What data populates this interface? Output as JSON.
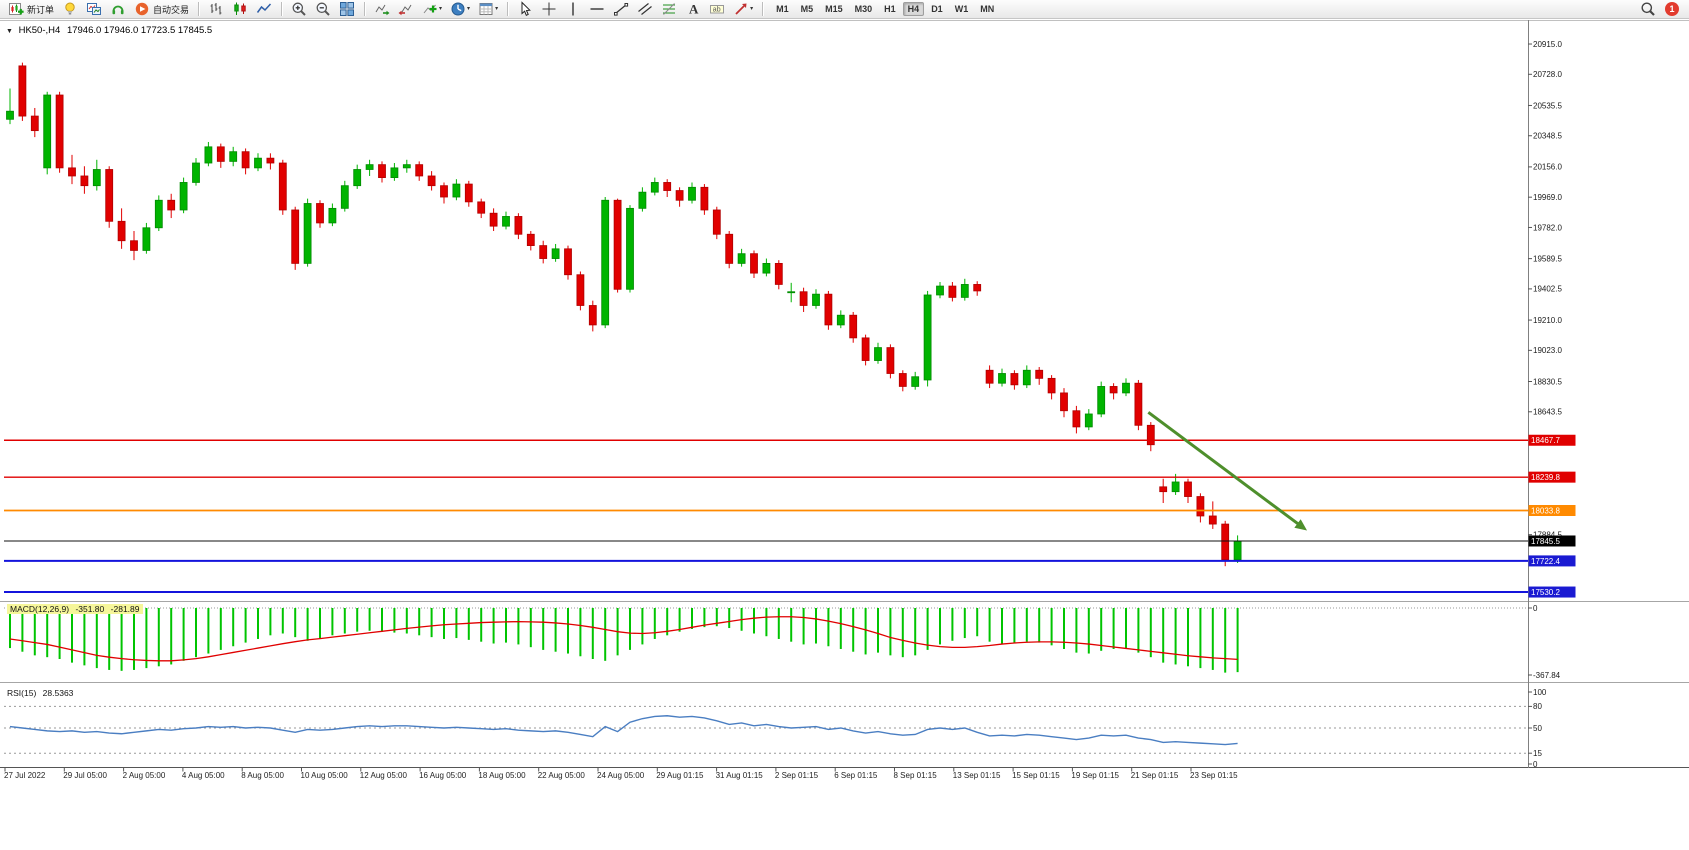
{
  "toolbar": {
    "buttons": [
      {
        "id": "new-order",
        "icon": "new-order-icon",
        "label": "新订单"
      },
      {
        "id": "quotes",
        "icon": "lightbulb-icon"
      },
      {
        "id": "chart-windows",
        "icon": "chart-window-icon"
      },
      {
        "id": "market-watch",
        "icon": "headset-icon"
      },
      {
        "id": "auto-trading",
        "icon": "autotrading-icon",
        "label": "自动交易"
      },
      {
        "sep": true
      },
      {
        "id": "bar-chart",
        "icon": "bar-chart-icon"
      },
      {
        "id": "candle-chart",
        "icon": "candle-chart-icon"
      },
      {
        "id": "line-chart",
        "icon": "line-chart-icon"
      },
      {
        "sep": true
      },
      {
        "id": "zoom-in",
        "icon": "zoom-in-icon"
      },
      {
        "id": "zoom-out",
        "icon": "zoom-out-icon"
      },
      {
        "id": "tile-windows",
        "icon": "tile-windows-icon"
      },
      {
        "sep": true
      },
      {
        "id": "auto-scroll",
        "icon": "auto-scroll-icon"
      },
      {
        "id": "chart-shift",
        "icon": "chart-shift-icon"
      },
      {
        "id": "indicators",
        "icon": "add-indicator-icon",
        "caret": true
      },
      {
        "id": "periods",
        "icon": "period-icon",
        "caret": true
      },
      {
        "id": "templates",
        "icon": "template-icon",
        "caret": true
      },
      {
        "sep": true
      },
      {
        "id": "cursor",
        "icon": "cursor-icon"
      },
      {
        "id": "crosshair",
        "icon": "crosshair-icon"
      },
      {
        "id": "vertical-line",
        "icon": "vline-icon"
      },
      {
        "id": "horizontal-line",
        "icon": "hline-icon"
      },
      {
        "id": "trendline",
        "icon": "trendline-icon"
      },
      {
        "id": "channel",
        "icon": "channel-icon"
      },
      {
        "id": "fibonacci",
        "icon": "fibonacci-icon"
      },
      {
        "id": "text",
        "icon": "text-icon"
      },
      {
        "id": "text-label",
        "icon": "label-icon"
      },
      {
        "id": "arrows",
        "icon": "arrow-shape-icon",
        "caret": true
      },
      {
        "sep": true
      }
    ],
    "timeframes": [
      {
        "label": "M1",
        "active": false
      },
      {
        "label": "M5",
        "active": false
      },
      {
        "label": "M15",
        "active": false
      },
      {
        "label": "M30",
        "active": false
      },
      {
        "label": "H1",
        "active": false
      },
      {
        "label": "H4",
        "active": true
      },
      {
        "label": "D1",
        "active": false
      },
      {
        "label": "W1",
        "active": false
      },
      {
        "label": "MN",
        "active": false
      }
    ],
    "right": {
      "search_icon": "search-icon",
      "notification_count": "1"
    }
  },
  "chart": {
    "header": {
      "collapse_glyph": "▼",
      "title": "HK50-,H4",
      "ohlc": "17946.0 17946.0 17723.5 17845.5"
    },
    "price_axis": {
      "labels": [
        "20915.0",
        "20728.0",
        "20535.5",
        "20348.5",
        "20156.0",
        "19969.0",
        "19782.0",
        "19589.5",
        "19402.5",
        "19210.0",
        "19023.0",
        "18830.5",
        "18643.5",
        "17884.5"
      ],
      "badges": [
        {
          "value": "18467.7",
          "color": "#e00000"
        },
        {
          "value": "18239.8",
          "color": "#e00000"
        },
        {
          "value": "18033.8",
          "color": "#ff8a00"
        },
        {
          "value": "17845.5",
          "color": "#000000"
        },
        {
          "value": "17722.4",
          "color": "#1a1ad2"
        },
        {
          "value": "17530.2",
          "color": "#1a1ad2"
        }
      ]
    },
    "macd": {
      "name": "MACD(12,26,9)",
      "value_main": "-351.80",
      "value_signal": "-281.89",
      "axis_labels": [
        "0",
        "-367.84"
      ]
    },
    "rsi": {
      "name": "RSI(15)",
      "value": "28.5363",
      "axis_labels": [
        "100",
        "80",
        "50",
        "15",
        "0"
      ]
    }
  },
  "chart_data": [
    {
      "type": "candlestick",
      "symbol": "HK50-",
      "timeframe": "H4",
      "y_range": [
        17481,
        21051
      ],
      "colors": {
        "up": "#00b400",
        "down": "#e10000",
        "up_edge": "#008a00",
        "down_edge": "#b00000"
      },
      "x_labels": [
        "27 Jul 2022",
        "29 Jul 05:00",
        "2 Aug 05:00",
        "4 Aug 05:00",
        "8 Aug 05:00",
        "10 Aug 05:00",
        "12 Aug 05:00",
        "16 Aug 05:00",
        "18 Aug 05:00",
        "22 Aug 05:00",
        "24 Aug 05:00",
        "29 Aug 01:15",
        "31 Aug 01:15",
        "2 Sep 01:15",
        "6 Sep 01:15",
        "8 Sep 01:15",
        "13 Sep 01:15",
        "15 Sep 01:15",
        "19 Sep 01:15",
        "21 Sep 01:15",
        "23 Sep 01:15"
      ],
      "levels": [
        {
          "price": 18467.7,
          "color": "#e00000",
          "width": 1.4
        },
        {
          "price": 18239.8,
          "color": "#e00000",
          "width": 1.4
        },
        {
          "price": 18033.8,
          "color": "#ff8a00",
          "width": 1.8
        },
        {
          "price": 17845.5,
          "color": "#101010",
          "width": 1
        },
        {
          "price": 17722.4,
          "color": "#1414dc",
          "width": 2
        },
        {
          "price": 17530.2,
          "color": "#1414dc",
          "width": 2
        }
      ],
      "annotations": [
        {
          "type": "arrow",
          "from_index": 91.8,
          "from_price": 18640,
          "to_index": 104.6,
          "to_price": 17910,
          "color": "#4e8f2c",
          "width": 3
        }
      ],
      "ohlc": [
        [
          20450,
          20640,
          20420,
          20500
        ],
        [
          20780,
          20800,
          20440,
          20470
        ],
        [
          20470,
          20520,
          20340,
          20380
        ],
        [
          20150,
          20620,
          20110,
          20600
        ],
        [
          20600,
          20620,
          20120,
          20150
        ],
        [
          20150,
          20230,
          20050,
          20100
        ],
        [
          20100,
          20160,
          19990,
          20040
        ],
        [
          20040,
          20200,
          20010,
          20140
        ],
        [
          20140,
          20160,
          19780,
          19820
        ],
        [
          19820,
          19900,
          19650,
          19700
        ],
        [
          19700,
          19760,
          19580,
          19640
        ],
        [
          19640,
          19810,
          19620,
          19780
        ],
        [
          19780,
          19980,
          19760,
          19950
        ],
        [
          19950,
          19990,
          19840,
          19890
        ],
        [
          19890,
          20090,
          19870,
          20060
        ],
        [
          20060,
          20210,
          20040,
          20180
        ],
        [
          20180,
          20310,
          20160,
          20280
        ],
        [
          20280,
          20300,
          20150,
          20190
        ],
        [
          20190,
          20280,
          20160,
          20250
        ],
        [
          20250,
          20270,
          20110,
          20150
        ],
        [
          20150,
          20240,
          20130,
          20210
        ],
        [
          20210,
          20240,
          20140,
          20180
        ],
        [
          20180,
          20200,
          19860,
          19890
        ],
        [
          19890,
          19910,
          19520,
          19560
        ],
        [
          19560,
          19960,
          19540,
          19930
        ],
        [
          19930,
          19950,
          19780,
          19810
        ],
        [
          19810,
          19930,
          19790,
          19900
        ],
        [
          19900,
          20070,
          19880,
          20040
        ],
        [
          20040,
          20170,
          20020,
          20140
        ],
        [
          20140,
          20200,
          20100,
          20170
        ],
        [
          20170,
          20190,
          20060,
          20090
        ],
        [
          20090,
          20180,
          20070,
          20150
        ],
        [
          20150,
          20200,
          20120,
          20170
        ],
        [
          20170,
          20190,
          20070,
          20100
        ],
        [
          20100,
          20130,
          20010,
          20040
        ],
        [
          20040,
          20060,
          19930,
          19970
        ],
        [
          19970,
          20080,
          19950,
          20050
        ],
        [
          20050,
          20070,
          19910,
          19940
        ],
        [
          19940,
          19960,
          19840,
          19870
        ],
        [
          19870,
          19900,
          19760,
          19790
        ],
        [
          19790,
          19880,
          19770,
          19850
        ],
        [
          19850,
          19870,
          19710,
          19740
        ],
        [
          19740,
          19760,
          19640,
          19670
        ],
        [
          19670,
          19700,
          19560,
          19590
        ],
        [
          19590,
          19680,
          19570,
          19650
        ],
        [
          19650,
          19670,
          19460,
          19490
        ],
        [
          19490,
          19510,
          19270,
          19300
        ],
        [
          19300,
          19330,
          19140,
          19180
        ],
        [
          19180,
          19970,
          19160,
          19950
        ],
        [
          19950,
          19960,
          19380,
          19400
        ],
        [
          19400,
          19920,
          19380,
          19900
        ],
        [
          19900,
          20030,
          19880,
          20000
        ],
        [
          20000,
          20090,
          19980,
          20060
        ],
        [
          20060,
          20080,
          19970,
          20010
        ],
        [
          20010,
          20030,
          19910,
          19950
        ],
        [
          19950,
          20060,
          19930,
          20030
        ],
        [
          20030,
          20050,
          19860,
          19890
        ],
        [
          19890,
          19910,
          19710,
          19740
        ],
        [
          19740,
          19760,
          19530,
          19560
        ],
        [
          19560,
          19650,
          19540,
          19620
        ],
        [
          19620,
          19640,
          19470,
          19500
        ],
        [
          19500,
          19590,
          19480,
          19560
        ],
        [
          19560,
          19580,
          19400,
          19430
        ],
        [
          19380,
          19440,
          19320,
          19385
        ],
        [
          19385,
          19410,
          19260,
          19300
        ],
        [
          19300,
          19400,
          19280,
          19370
        ],
        [
          19370,
          19390,
          19150,
          19180
        ],
        [
          19180,
          19270,
          19160,
          19240
        ],
        [
          19240,
          19260,
          19070,
          19100
        ],
        [
          19100,
          19120,
          18930,
          18960
        ],
        [
          18960,
          19070,
          18940,
          19040
        ],
        [
          19040,
          19060,
          18850,
          18880
        ],
        [
          18880,
          18900,
          18770,
          18800
        ],
        [
          18800,
          18890,
          18780,
          18860
        ],
        [
          18840,
          19390,
          18800,
          19365
        ],
        [
          19365,
          19445,
          19345,
          19420
        ],
        [
          19420,
          19445,
          19325,
          19350
        ],
        [
          19350,
          19465,
          19330,
          19430
        ],
        [
          19430,
          19450,
          19360,
          19390
        ],
        [
          18900,
          18930,
          18790,
          18820
        ],
        [
          18820,
          18910,
          18800,
          18880
        ],
        [
          18880,
          18900,
          18780,
          18810
        ],
        [
          18810,
          18930,
          18790,
          18900
        ],
        [
          18900,
          18920,
          18810,
          18850
        ],
        [
          18850,
          18870,
          18720,
          18760
        ],
        [
          18760,
          18790,
          18610,
          18650
        ],
        [
          18650,
          18680,
          18510,
          18550
        ],
        [
          18550,
          18660,
          18530,
          18630
        ],
        [
          18630,
          18830,
          18610,
          18800
        ],
        [
          18800,
          18820,
          18720,
          18760
        ],
        [
          18760,
          18850,
          18740,
          18820
        ],
        [
          18820,
          18840,
          18530,
          18560
        ],
        [
          18560,
          18580,
          18400,
          18440
        ],
        [
          18180,
          18230,
          18080,
          18150
        ],
        [
          18150,
          18260,
          18130,
          18210
        ],
        [
          18210,
          18230,
          18080,
          18120
        ],
        [
          18120,
          18140,
          17960,
          18000
        ],
        [
          18000,
          18090,
          17920,
          17950
        ],
        [
          17950,
          17970,
          17690,
          17730
        ],
        [
          17730,
          17880,
          17710,
          17845.5
        ]
      ]
    },
    {
      "type": "bar",
      "name": "MACD(12,26,9)",
      "y_range": [
        -367.84,
        0
      ],
      "colors": {
        "histogram": "#00c400",
        "signal": "#e00000"
      },
      "values": [
        -220,
        -240,
        -260,
        -270,
        -280,
        -300,
        -315,
        -330,
        -340,
        -345,
        -340,
        -330,
        -320,
        -310,
        -290,
        -270,
        -250,
        -230,
        -210,
        -190,
        -170,
        -150,
        -140,
        -160,
        -180,
        -170,
        -150,
        -140,
        -130,
        -125,
        -130,
        -135,
        -140,
        -150,
        -160,
        -170,
        -165,
        -175,
        -185,
        -195,
        -190,
        -200,
        -215,
        -230,
        -240,
        -250,
        -265,
        -280,
        -290,
        -260,
        -230,
        -200,
        -170,
        -150,
        -130,
        -115,
        -105,
        -100,
        -110,
        -125,
        -140,
        -155,
        -170,
        -185,
        -200,
        -195,
        -210,
        -225,
        -240,
        -255,
        -245,
        -260,
        -270,
        -260,
        -230,
        -200,
        -180,
        -165,
        -155,
        -185,
        -195,
        -190,
        -185,
        -190,
        -205,
        -225,
        -245,
        -250,
        -235,
        -225,
        -220,
        -245,
        -270,
        -300,
        -310,
        -320,
        -330,
        -340,
        -355,
        -351.8
      ],
      "signal": [
        -170,
        -180,
        -190,
        -200,
        -215,
        -230,
        -245,
        -260,
        -270,
        -278,
        -284,
        -288,
        -290,
        -290,
        -285,
        -278,
        -268,
        -256,
        -244,
        -232,
        -220,
        -208,
        -196,
        -185,
        -175,
        -168,
        -160,
        -152,
        -144,
        -136,
        -128,
        -120,
        -112,
        -105,
        -98,
        -92,
        -88,
        -84,
        -80,
        -78,
        -76,
        -75,
        -76,
        -78,
        -82,
        -88,
        -96,
        -106,
        -118,
        -130,
        -138,
        -140,
        -136,
        -128,
        -118,
        -106,
        -94,
        -84,
        -74,
        -64,
        -56,
        -50,
        -48,
        -48,
        -52,
        -60,
        -72,
        -86,
        -102,
        -120,
        -140,
        -162,
        -178,
        -192,
        -204,
        -212,
        -216,
        -216,
        -212,
        -206,
        -198,
        -192,
        -188,
        -186,
        -186,
        -188,
        -192,
        -198,
        -206,
        -214,
        -222,
        -230,
        -238,
        -246,
        -254,
        -262,
        -268,
        -274,
        -278,
        -281.89
      ]
    },
    {
      "type": "line",
      "name": "RSI(15)",
      "y_range": [
        0,
        100
      ],
      "levels": [
        80,
        50,
        15
      ],
      "color": "#4a7ec2",
      "values": [
        52,
        50,
        48,
        46,
        45,
        46,
        44,
        45,
        43,
        42,
        44,
        46,
        48,
        47,
        49,
        50,
        52,
        51,
        52,
        50,
        51,
        50,
        47,
        44,
        48,
        47,
        48,
        50,
        52,
        53,
        52,
        53,
        53,
        52,
        51,
        50,
        51,
        50,
        49,
        48,
        49,
        47,
        46,
        45,
        46,
        44,
        41,
        38,
        52,
        45,
        58,
        63,
        66,
        67,
        65,
        66,
        64,
        60,
        55,
        57,
        53,
        55,
        52,
        50,
        51,
        52,
        48,
        50,
        46,
        43,
        45,
        42,
        40,
        41,
        48,
        50,
        48,
        50,
        44,
        39,
        40,
        39,
        41,
        40,
        38,
        36,
        34,
        36,
        40,
        39,
        40,
        36,
        34,
        30,
        31,
        30,
        29,
        28,
        27,
        28.54
      ]
    }
  ]
}
